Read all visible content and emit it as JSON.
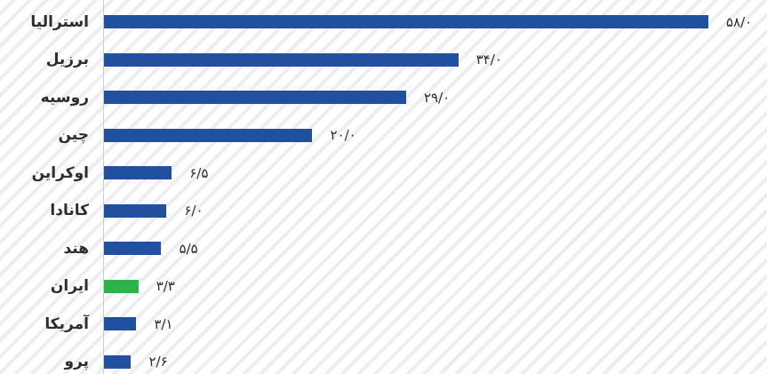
{
  "chart_data": {
    "type": "bar",
    "orientation": "horizontal",
    "categories": [
      "استرالیا",
      "برزیل",
      "روسیه",
      "چین",
      "اوکراین",
      "کانادا",
      "هند",
      "ایران",
      "آمریکا",
      "پرو"
    ],
    "values": [
      58.0,
      34.0,
      29.0,
      20.0,
      6.5,
      6.0,
      5.5,
      3.3,
      3.1,
      2.6
    ],
    "value_labels": [
      "۵۸/۰",
      "۳۴/۰",
      "۲۹/۰",
      "۲۰/۰",
      "۶/۵",
      "۶/۰",
      "۵/۵",
      "۳/۳",
      "۳/۱",
      "۲/۶"
    ],
    "highlight_category": "ایران",
    "colors": {
      "default": "#2150a1",
      "highlight": "#2db34a"
    },
    "xlim": [
      0,
      58
    ],
    "grid": false
  }
}
